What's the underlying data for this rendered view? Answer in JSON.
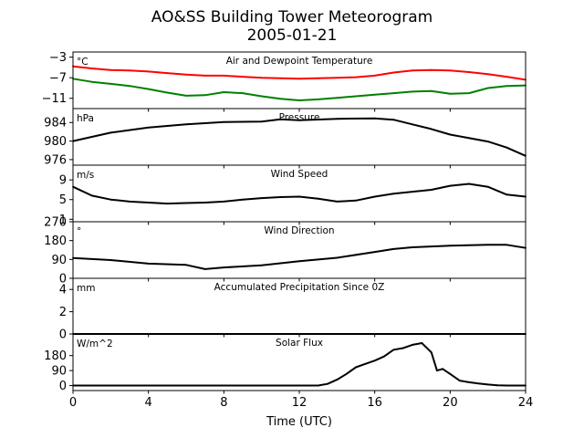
{
  "chart_data": {
    "type": "line",
    "title": "AO&SS Building Tower Meteorogram",
    "subtitle": "2005-01-21",
    "xlabel": "Time (UTC)",
    "xlim": [
      0,
      24
    ],
    "xticks": [
      0,
      4,
      8,
      12,
      16,
      20,
      24
    ],
    "panels": [
      {
        "title": "Air and Dewpoint Temperature",
        "unit": "°C",
        "ylim": [
          -13,
          -2
        ],
        "yticks": [
          -11,
          -7,
          -3
        ],
        "series": [
          {
            "color": "#ff0000",
            "x": [
              0,
              1,
              2,
              3,
              4,
              5,
              6,
              7,
              8,
              9,
              10,
              11,
              12,
              13,
              14,
              15,
              16,
              17,
              18,
              19,
              20,
              21,
              22,
              23,
              24
            ],
            "y": [
              -4.8,
              -5.2,
              -5.5,
              -5.6,
              -5.8,
              -6.1,
              -6.4,
              -6.6,
              -6.6,
              -6.8,
              -7.0,
              -7.1,
              -7.2,
              -7.1,
              -7.0,
              -6.9,
              -6.6,
              -6.0,
              -5.6,
              -5.5,
              -5.6,
              -5.9,
              -6.3,
              -6.8,
              -7.4
            ]
          },
          {
            "color": "#008000",
            "x": [
              0,
              1,
              2,
              3,
              4,
              5,
              6,
              7,
              8,
              9,
              10,
              11,
              12,
              13,
              14,
              15,
              16,
              17,
              18,
              19,
              20,
              21,
              22,
              23,
              24
            ],
            "y": [
              -7.2,
              -7.8,
              -8.2,
              -8.6,
              -9.2,
              -9.9,
              -10.5,
              -10.4,
              -9.8,
              -10.0,
              -10.6,
              -11.1,
              -11.4,
              -11.2,
              -10.9,
              -10.6,
              -10.3,
              -10.0,
              -9.7,
              -9.6,
              -10.1,
              -10.0,
              -9.0,
              -8.6,
              -8.5
            ]
          }
        ]
      },
      {
        "title": "Pressure",
        "unit": "hPa",
        "ylim": [
          974.8,
          987.0
        ],
        "yticks": [
          976,
          980,
          984
        ],
        "series": [
          {
            "color": "#000000",
            "x": [
              0,
              2,
              4,
              6,
              8,
              10,
              11,
              12,
              14,
              16,
              17,
              18,
              19,
              20,
              22,
              23,
              24
            ],
            "y": [
              980.0,
              981.8,
              982.9,
              983.6,
              984.1,
              984.2,
              984.7,
              984.5,
              984.8,
              984.9,
              984.6,
              983.6,
              982.6,
              981.4,
              979.9,
              978.6,
              976.8
            ]
          }
        ]
      },
      {
        "title": "Wind Speed",
        "unit": "m/s",
        "ylim": [
          0.5,
          12
        ],
        "yticks": [
          1,
          5,
          9
        ],
        "series": [
          {
            "color": "#000000",
            "x": [
              0,
              1,
              2,
              3,
              4,
              5,
              6,
              7,
              8,
              9,
              10,
              11,
              12,
              13,
              14,
              15,
              16,
              17,
              18,
              19,
              20,
              21,
              22,
              23,
              24
            ],
            "y": [
              7.6,
              5.8,
              5.0,
              4.6,
              4.4,
              4.2,
              4.3,
              4.4,
              4.6,
              5.0,
              5.3,
              5.5,
              5.6,
              5.2,
              4.6,
              4.8,
              5.6,
              6.2,
              6.6,
              7.0,
              7.8,
              8.2,
              7.6,
              6.0,
              5.6
            ]
          }
        ]
      },
      {
        "title": "Wind Direction",
        "unit": "°",
        "ylim": [
          0,
          270
        ],
        "yticks": [
          0,
          90,
          180,
          270
        ],
        "series": [
          {
            "color": "#000000",
            "x": [
              0,
              2,
              4,
              6,
              7,
              8,
              10,
              12,
              14,
              16,
              17,
              18,
              20,
              22,
              23,
              24
            ],
            "y": [
              97,
              87,
              70,
              64,
              44,
              52,
              62,
              82,
              98,
              126,
              140,
              148,
              156,
              160,
              160,
              145
            ]
          }
        ]
      },
      {
        "title": "Accumulated Precipitation Since 0Z",
        "unit": "mm",
        "ylim": [
          0,
          5
        ],
        "yticks": [
          0,
          2,
          4
        ],
        "series": [
          {
            "color": "#000000",
            "x": [
              0,
              24
            ],
            "y": [
              0,
              0
            ]
          }
        ]
      },
      {
        "title": "Solar Flux",
        "unit": "W/m^2",
        "ylim": [
          -30,
          310
        ],
        "yticks": [
          0,
          90,
          180
        ],
        "series": [
          {
            "color": "#000000",
            "x": [
              0,
              13,
              13.5,
              14,
              14.5,
              15,
              15.5,
              16,
              16.5,
              17,
              17.5,
              18,
              18.5,
              19,
              19.3,
              19.6,
              20,
              20.5,
              21,
              21.5,
              22,
              22.5,
              23,
              24
            ],
            "y": [
              0,
              0,
              10,
              35,
              70,
              110,
              130,
              150,
              175,
              215,
              225,
              245,
              255,
              200,
              90,
              100,
              70,
              30,
              20,
              12,
              6,
              2,
              0,
              0
            ]
          }
        ]
      }
    ]
  }
}
